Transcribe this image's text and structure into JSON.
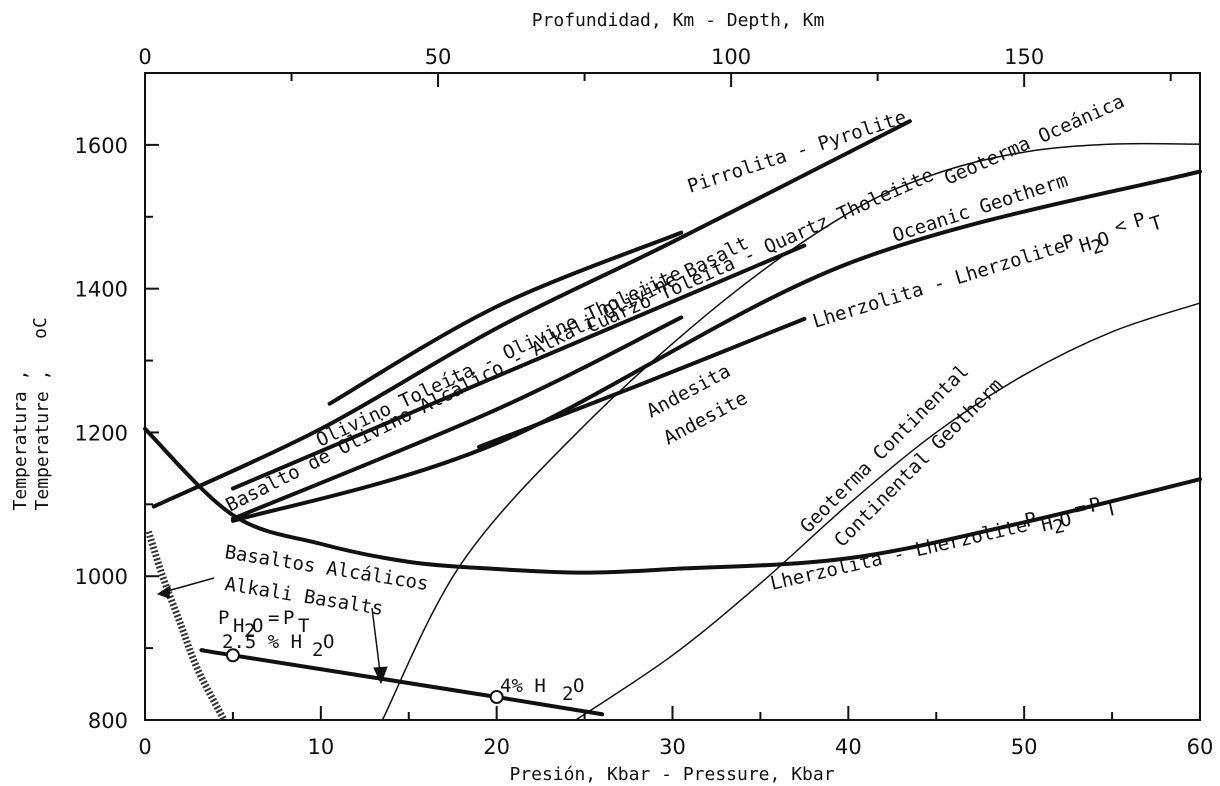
{
  "chart_data": {
    "type": "line",
    "title": "Profundidad, Km - Depth, Km",
    "xlabel": "Presión, Kbar - Pressure, Kbar",
    "ylabel_line1": "Temperatura ,",
    "ylabel_line2": "Temperature ,",
    "ylabel_unit": "oC",
    "xlim": [
      0,
      60
    ],
    "ylim": [
      800,
      1700
    ],
    "top_axis_range": [
      0,
      180
    ],
    "x_ticks": [
      "0",
      "10",
      "20",
      "30",
      "40",
      "50",
      "60"
    ],
    "y_ticks": [
      "800",
      "1000",
      "1200",
      "1400",
      "1600"
    ],
    "top_ticks": [
      "0",
      "50",
      "100",
      "150"
    ],
    "x_tick_values": [
      0,
      10,
      20,
      30,
      40,
      50,
      60
    ],
    "y_tick_values": [
      800,
      1000,
      1200,
      1400,
      1600
    ],
    "top_tick_values": [
      0,
      50,
      100,
      150
    ],
    "grid": false,
    "series": [
      {
        "name": "Pirrolita - Pyrolite",
        "weight": "bold",
        "x": [
          0.5,
          10,
          20,
          30,
          43.5
        ],
        "y": [
          1097,
          1205,
          1345,
          1465,
          1633
        ]
      },
      {
        "name": "Olivino Toleíta - Olivine Tholeiite",
        "weight": "bold",
        "x": [
          10.5,
          20,
          30.5
        ],
        "y": [
          1240,
          1375,
          1478
        ]
      },
      {
        "name": "Cuarzo Toleíta - Quartz Tholeiite",
        "weight": "bold",
        "x": [
          5,
          20,
          37.5
        ],
        "y": [
          1122,
          1278,
          1460
        ]
      },
      {
        "name": "Basalto de Olivino Alcálico - Alkali Olivine Basalt",
        "weight": "bold",
        "x": [
          5,
          20,
          30.5
        ],
        "y": [
          1080,
          1232,
          1360
        ]
      },
      {
        "name": "Andesita Andesite",
        "weight": "bold",
        "x": [
          19,
          28,
          37.5
        ],
        "y": [
          1180,
          1265,
          1358
        ]
      },
      {
        "name": "Lherzolita - Lherzolite P_H2O < P_T",
        "weight": "bold",
        "x": [
          5,
          20,
          40,
          60
        ],
        "y": [
          1077,
          1185,
          1435,
          1563
        ]
      },
      {
        "name": "Lherzolita - Lherzolite P_H2O = P_T",
        "weight": "bold",
        "x": [
          0,
          5,
          10,
          15,
          20,
          25,
          30,
          40,
          50,
          60
        ],
        "y": [
          1205,
          1085,
          1045,
          1020,
          1010,
          1005,
          1010,
          1025,
          1075,
          1135
        ]
      },
      {
        "name": "Geoterma Oceánica - Oceanic Geotherm",
        "weight": "thin",
        "x": [
          13.5,
          18,
          25,
          33,
          40,
          45,
          50,
          55,
          60
        ],
        "y": [
          800,
          1018,
          1210,
          1385,
          1505,
          1560,
          1590,
          1601,
          1601
        ]
      },
      {
        "name": "Geoterma Continental - Continental Geotherm",
        "weight": "thin",
        "x": [
          24.5,
          30,
          35,
          40,
          45,
          50,
          55,
          60
        ],
        "y": [
          800,
          890,
          990,
          1100,
          1200,
          1280,
          1340,
          1380
        ]
      },
      {
        "name": "Basaltos Alcálicos P_H2O = P_T",
        "weight": "bold",
        "x": [
          3.3,
          5,
          20,
          26
        ],
        "y": [
          897,
          890,
          832,
          808
        ]
      },
      {
        "name": "Alkali Basalts boundary",
        "weight": "hatched",
        "x": [
          0.2,
          1,
          2,
          3,
          4.5
        ],
        "y": [
          1062,
          1000,
          935,
          870,
          800
        ]
      }
    ],
    "points": [
      {
        "label": "2.5 % H2O",
        "x": 5,
        "y": 890
      },
      {
        "label": "4% H2O",
        "x": 20,
        "y": 832
      }
    ],
    "annotations": {
      "pyrolite": "Pirrolita - Pyrolite",
      "quartz_tholeiite": "Cuarzo Toleíta - Quartz Tholeiite",
      "olivine_tholeiite": "Olivino Toleíta - Olivine Tholeiite",
      "alkali_olivine_basalt": "Basalto de Olivino Alcálico - Alkali Olivine Basalt",
      "andesite_es": "Andesita",
      "andesite_en": "Andesite",
      "oceanic_es": "Geoterma Oceánica",
      "oceanic_en": "Oceanic Geotherm",
      "lherz_dry": "Lherzolita - Lherzolite",
      "lherz_wet": "Lherzolita - Lherzolite",
      "continental_es": "Geoterma Continental",
      "continental_en": "Continental Geotherm",
      "alkali_es": "Basaltos Alcálicos",
      "alkali_en": "Alkali Basalts",
      "p_symbol": "P",
      "h2o_sub": "H",
      "two_sub": "2",
      "o_sub": "O",
      "t_sub": "T",
      "lt": "<",
      "eq": "=",
      "pt_25": "2.5 % H",
      "pt_4": "4% H",
      "o_char": "O"
    }
  }
}
